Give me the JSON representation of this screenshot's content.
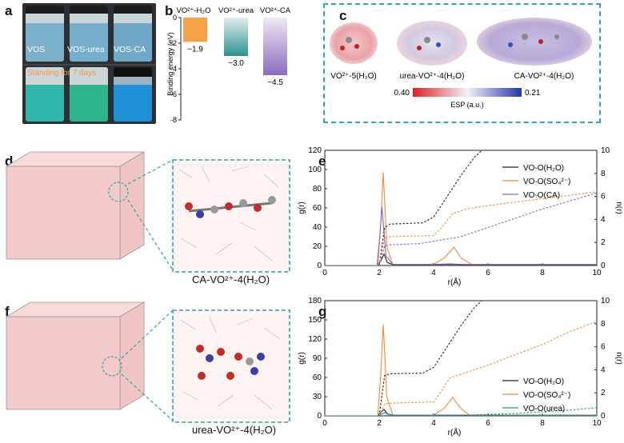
{
  "panel_labels": {
    "a": "a",
    "b": "b",
    "c": "c",
    "d": "d",
    "e": "e",
    "f": "f",
    "g": "g"
  },
  "colors": {
    "water": "#f6a248",
    "urea": "#2d8f8f",
    "ca": "#8d6bbd",
    "esp_neg": "#e02020",
    "esp_pos": "#2536a8",
    "dashed_box": "#2aa7a7",
    "h2o_line": "#222222",
    "so4_line": "#f08a3c",
    "ca_line": "#7a6ac0",
    "urea_line": "#2f8f8f"
  },
  "panel_a": {
    "bottles": [
      "VOS",
      "VOS-urea",
      "VOS-CA"
    ],
    "standing": "Standing for 7 days"
  },
  "panel_b": {
    "chart_data": {
      "type": "bar",
      "categories": [
        "VO²⁺-H₂O",
        "VO²⁺-urea",
        "VO²⁺-CA"
      ],
      "values": [
        -1.9,
        -3.0,
        -4.5
      ],
      "value_labels": [
        "−1.9",
        "−3.0",
        "−4.5"
      ],
      "ylabel": "Binding energy (eV)",
      "ylim": [
        -8,
        0
      ],
      "yticks": [
        "0",
        "-2",
        "-4",
        "-6",
        "-8"
      ]
    },
    "header_labels": [
      "VO²⁺-H₂O",
      "VO²⁺-urea",
      "VO²⁺-CA"
    ]
  },
  "panel_c": {
    "species": [
      "VO²⁺-5(H₂O)",
      "urea-VO²⁺-4(H₂O)",
      "CA-VO²⁺-4(H₂O)"
    ],
    "esp_min": "0.40",
    "esp_max": "0.21",
    "esp_label": "ESP (a.u.)"
  },
  "panel_d": {
    "caption": "CA-VO²⁺-4(H₂O)"
  },
  "panel_f": {
    "caption": "urea-VO²⁺-4(H₂O)"
  },
  "panel_e": {
    "chart_data": {
      "type": "line",
      "xlabel": "r(Å)",
      "ylabel": "g(r)",
      "ylabel_right": "n(r)",
      "xlim": [
        0,
        10
      ],
      "ylim": [
        0,
        120
      ],
      "ylim_right": [
        0,
        10
      ],
      "xticks": [
        "0",
        "2",
        "4",
        "6",
        "8",
        "10"
      ],
      "yticks": [
        "0",
        "20",
        "40",
        "60",
        "80",
        "100",
        "120"
      ],
      "yticks_right": [
        "0",
        "2",
        "4",
        "6",
        "8",
        "10"
      ],
      "legend": [
        "VO-O(H₂O)",
        "VO-O(SO₄²⁻)",
        "VO-O(CA)"
      ],
      "series": [
        {
          "name": "VO-O(H₂O) g(r)",
          "x": [
            0,
            1.95,
            2.08,
            2.18,
            2.3,
            2.5,
            3.5,
            4.2,
            4.6,
            5.2,
            10
          ],
          "values": [
            0,
            0,
            6,
            12,
            3,
            1,
            1,
            1.2,
            1.5,
            1,
            1
          ]
        },
        {
          "name": "VO-O(SO₄²⁻) g(r)",
          "x": [
            0,
            1.95,
            2.05,
            2.15,
            2.28,
            2.5,
            4.0,
            4.4,
            4.75,
            5.0,
            5.4,
            10
          ],
          "values": [
            0,
            0,
            40,
            97,
            20,
            1,
            1,
            8,
            19,
            8,
            1,
            1
          ]
        },
        {
          "name": "VO-O(CA) g(r)",
          "x": [
            0,
            1.92,
            2.02,
            2.1,
            2.25,
            2.5,
            4.0,
            10
          ],
          "values": [
            0,
            0,
            30,
            61,
            10,
            1,
            1,
            1
          ]
        },
        {
          "name": "VO-O(H₂O) n(r)",
          "x": [
            2.0,
            2.2,
            2.4,
            3.6,
            4.0,
            4.5,
            5.0,
            5.5,
            6.0
          ],
          "values": [
            0,
            3.3,
            3.6,
            3.7,
            4.2,
            6.0,
            7.8,
            9.4,
            10.5
          ]
        },
        {
          "name": "VO-O(SO₄²⁻) n(r)",
          "x": [
            2.0,
            2.2,
            2.4,
            4.0,
            4.3,
            4.7,
            5.2,
            6,
            7,
            8,
            9,
            10
          ],
          "values": [
            0,
            2.4,
            2.5,
            2.6,
            3.3,
            4.5,
            4.9,
            5.2,
            5.5,
            5.8,
            6.1,
            6.4
          ]
        },
        {
          "name": "VO-O(CA) n(r)",
          "x": [
            2.0,
            2.2,
            2.4,
            3.5,
            5,
            6,
            7,
            8,
            9,
            10
          ],
          "values": [
            0,
            1.7,
            1.8,
            1.9,
            2.5,
            3.3,
            4.1,
            4.9,
            5.6,
            6.3
          ]
        }
      ]
    }
  },
  "panel_g": {
    "chart_data": {
      "type": "line",
      "xlabel": "r(Å)",
      "ylabel": "g(r)",
      "ylabel_right": "n(r)",
      "xlim": [
        0,
        10
      ],
      "ylim": [
        0,
        180
      ],
      "ylim_right": [
        0,
        10
      ],
      "xticks": [
        "0",
        "2",
        "4",
        "6",
        "8",
        "10"
      ],
      "yticks": [
        "0",
        "30",
        "60",
        "90",
        "120",
        "150",
        "180"
      ],
      "yticks_right": [
        "0",
        "2",
        "4",
        "6",
        "8",
        "10"
      ],
      "legend": [
        "VO-O(H₂O)",
        "VO-O(SO₄²⁻)",
        "VO-O(urea)"
      ],
      "series": [
        {
          "name": "VO-O(H₂O) g(r)",
          "x": [
            0,
            1.95,
            2.08,
            2.18,
            2.3,
            2.5,
            10
          ],
          "values": [
            0,
            0,
            6,
            10,
            3,
            1,
            1
          ]
        },
        {
          "name": "VO-O(SO₄²⁻) g(r)",
          "x": [
            0,
            1.95,
            2.05,
            2.15,
            2.28,
            2.5,
            4.0,
            4.4,
            4.7,
            4.95,
            5.3,
            10
          ],
          "values": [
            0,
            0,
            60,
            143,
            30,
            1,
            1,
            12,
            29,
            14,
            1,
            1
          ]
        },
        {
          "name": "VO-O(urea) g(r)",
          "x": [
            0,
            1.98,
            2.1,
            2.2,
            2.35,
            2.6,
            10
          ],
          "values": [
            0,
            0,
            3,
            5,
            2,
            1,
            1
          ]
        },
        {
          "name": "VO-O(H₂O) n(r)",
          "x": [
            2.0,
            2.2,
            2.4,
            3.6,
            4.0,
            4.5,
            5.0,
            5.5,
            6.0
          ],
          "values": [
            0,
            3.5,
            3.65,
            3.7,
            4.2,
            6.0,
            7.8,
            9.4,
            10.5
          ]
        },
        {
          "name": "VO-O(SO₄²⁻) n(r)",
          "x": [
            2.0,
            2.2,
            2.4,
            4.0,
            4.3,
            4.6,
            5.0,
            6,
            7,
            8,
            9,
            10
          ],
          "values": [
            0,
            1.0,
            1.1,
            1.2,
            2.2,
            3.3,
            3.6,
            4.4,
            5.3,
            6.2,
            7.3,
            8.2
          ]
        },
        {
          "name": "VO-O(urea) n(r)",
          "x": [
            2.0,
            2.3,
            5,
            7,
            8,
            9,
            10
          ],
          "values": [
            0,
            0.03,
            0.05,
            0.2,
            0.35,
            0.5,
            0.7
          ]
        }
      ]
    }
  }
}
